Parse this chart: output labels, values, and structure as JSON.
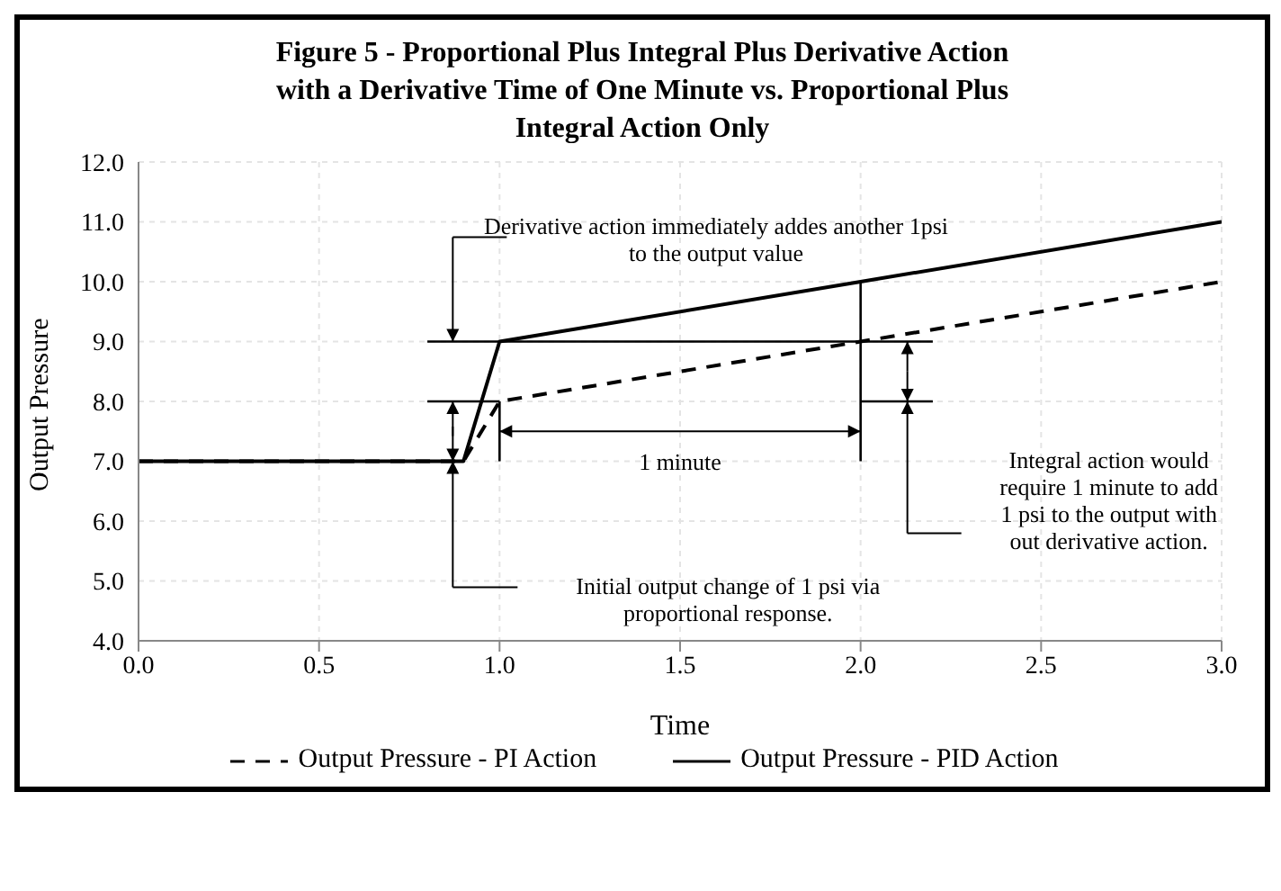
{
  "chart_data": {
    "type": "line",
    "title": "Figure 5 - Proportional Plus Integral Plus Derivative Action with a Derivative Time of  One Minute vs. Proportional Plus Integral Action Only",
    "xlabel": "Time",
    "ylabel": "Output Pressure",
    "x": [
      0,
      0.9,
      1.0,
      2.0,
      3.0
    ],
    "series": [
      {
        "name": "Output Pressure - PI Action",
        "color": "#000000",
        "values": [
          7,
          7,
          8,
          9,
          10
        ],
        "line_style": "dashed"
      },
      {
        "name": "Output Pressure - PID Action",
        "color": "#000000",
        "values": [
          7,
          7,
          9,
          10,
          11
        ],
        "line_style": "solid"
      },
      {
        "color": "#000000",
        "x": [
          0.8,
          2.2
        ],
        "values": [
          9,
          9
        ]
      },
      {
        "color": "#000000",
        "x": [
          0.8,
          1.0
        ],
        "values": [
          8,
          8
        ]
      },
      {
        "color": "#000000",
        "x": [
          2.0,
          2.2
        ],
        "values": [
          8,
          8
        ]
      },
      {
        "color": "#000000",
        "x": [
          1.0,
          1.0
        ],
        "values": [
          8,
          7
        ]
      },
      {
        "color": "#000000",
        "x": [
          2.0,
          2.0
        ],
        "values": [
          10,
          7
        ]
      }
    ],
    "xlim": [
      0,
      3
    ],
    "xticks": [
      {
        "value": 0,
        "label": "0.0"
      },
      {
        "value": 0.5,
        "label": "0.5"
      },
      {
        "value": 1,
        "label": "1.0"
      },
      {
        "value": 1.5,
        "label": "1.5"
      },
      {
        "value": 2,
        "label": "2.0"
      },
      {
        "value": 2.5,
        "label": "2.5"
      },
      {
        "value": 3,
        "label": "3.0"
      }
    ],
    "ylim": [
      4,
      12
    ],
    "yticks": [
      {
        "value": 4,
        "label": "4.0"
      },
      {
        "value": 5,
        "label": "5.0"
      },
      {
        "value": 6,
        "label": "6.0"
      },
      {
        "value": 7,
        "label": "7.0"
      },
      {
        "value": 8,
        "label": "8.0"
      },
      {
        "value": 9,
        "label": "9.0"
      },
      {
        "value": 10,
        "label": "10.0"
      },
      {
        "value": 11,
        "label": "11.0"
      },
      {
        "value": 12,
        "label": "12.0"
      }
    ],
    "annotations": [
      "Derivative action immediately addes another 1psi to the output value",
      {
        "text": "1 minute",
        "x": 2.0,
        "y": 7.5
      },
      "Initial output change of 1 psi via proportional response.",
      "Integral action would require 1 minute to add 1 psi to the output with out derivative action."
    ],
    "grid": true,
    "legend": "bottom",
    "marker": "none"
  }
}
